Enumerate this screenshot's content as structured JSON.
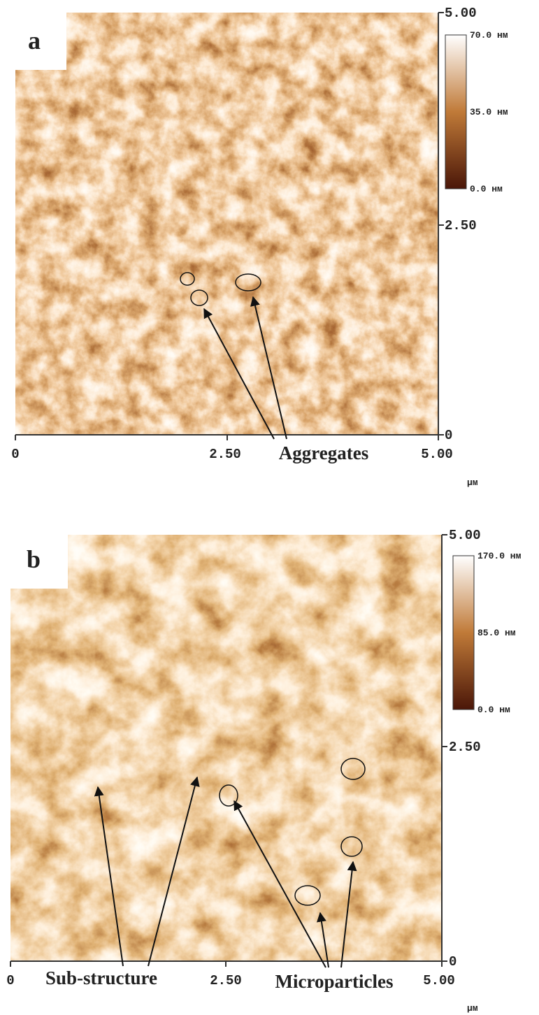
{
  "panels": [
    {
      "label": "a",
      "y_ticks": [
        "5.00",
        "2.50",
        "0"
      ],
      "x_ticks": [
        "0",
        "2.50",
        "5.00"
      ],
      "unit": "μм",
      "colorbar": [
        "70.0 нм",
        "35.0 нм",
        "0.0 нм"
      ],
      "annotations": [
        "Aggregates"
      ]
    },
    {
      "label": "b",
      "y_ticks": [
        "5.00",
        "2.50",
        "0"
      ],
      "x_ticks": [
        "0",
        "2.50",
        "5.00"
      ],
      "unit": "μм",
      "colorbar": [
        "170.0 нм",
        "85.0 нм",
        "0.0 нм"
      ],
      "annotations": [
        "Sub-structure",
        "Microparticles"
      ]
    }
  ]
}
